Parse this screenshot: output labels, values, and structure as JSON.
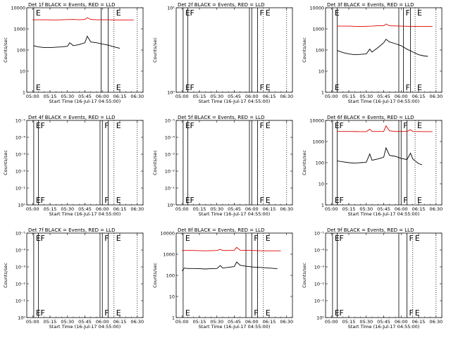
{
  "figure": {
    "colors": {
      "events": "#000000",
      "lld": "#e00000",
      "background": "#ffffff"
    }
  },
  "chart_data": [
    {
      "type": "line",
      "title": "Det 1f  BLACK = Events, RED = LLD",
      "xlabel": "Start Time (16-Jul-17 04:55:00)",
      "ylabel": "Counts/sec",
      "x_ticks": [
        "05:00",
        "05:15",
        "05:30",
        "05:45",
        "06:00",
        "06:15",
        "06:30"
      ],
      "y_scale": "log",
      "y_ticks": [
        "1",
        "10",
        "100",
        "1000",
        "10000"
      ],
      "xlim": [
        "04:55",
        "06:35"
      ],
      "ylim": [
        1,
        10000
      ],
      "markers": [
        {
          "time": "05:01",
          "style": "solid",
          "label": "E"
        },
        {
          "time": "05:59",
          "style": "solid",
          "label": ""
        },
        {
          "time": "06:05",
          "style": "solid",
          "label": ""
        },
        {
          "time": "06:10",
          "style": "dotted",
          "label": "E"
        },
        {
          "time": "06:30",
          "style": "dotted",
          "label": ""
        }
      ],
      "series": [
        {
          "color": "#e00000",
          "x": [
            "05:00",
            "05:10",
            "05:20",
            "05:30",
            "05:35",
            "05:40",
            "05:45",
            "05:47",
            "05:50",
            "05:55",
            "06:00",
            "06:05",
            "06:10",
            "06:15",
            "06:20",
            "06:27"
          ],
          "y": [
            2700,
            2700,
            2650,
            2750,
            2800,
            2700,
            2800,
            3400,
            2800,
            2700,
            2700,
            2700,
            2650,
            2650,
            2650,
            2650
          ]
        },
        {
          "color": "#000000",
          "x": [
            "05:01",
            "05:05",
            "05:10",
            "05:15",
            "05:20",
            "05:25",
            "05:30",
            "05:32",
            "05:35",
            "05:40",
            "05:45",
            "05:47",
            "05:50",
            "05:55",
            "06:00",
            "06:05",
            "06:10",
            "06:15"
          ],
          "y": [
            160,
            140,
            130,
            130,
            135,
            140,
            150,
            220,
            160,
            180,
            220,
            450,
            240,
            220,
            190,
            170,
            140,
            120
          ]
        }
      ]
    },
    {
      "type": "line",
      "title": "Det 2f  BLACK = Events, RED = LLD",
      "xlabel": "Start Time (16-Jul-17 04:55:00)",
      "ylabel": "Counts/sec",
      "x_ticks": [
        "05:00",
        "05:15",
        "05:30",
        "05:45",
        "06:00",
        "06:15",
        "06:30"
      ],
      "y_scale": "log",
      "y_ticks": [
        "10⁰",
        "10¹"
      ],
      "xlim": [
        "04:55",
        "06:35"
      ],
      "ylim": [
        1,
        10
      ],
      "markers": [
        {
          "time": "05:01",
          "style": "solid",
          "label": "E"
        },
        {
          "time": "05:05",
          "style": "solid",
          "label": "F"
        },
        {
          "time": "05:58",
          "style": "solid",
          "label": ""
        },
        {
          "time": "06:00",
          "style": "solid",
          "label": ""
        },
        {
          "time": "06:05",
          "style": "solid",
          "label": "F"
        },
        {
          "time": "06:10",
          "style": "dotted",
          "label": "E"
        },
        {
          "time": "06:30",
          "style": "dotted",
          "label": ""
        }
      ],
      "series": []
    },
    {
      "type": "line",
      "title": "Det 3f  BLACK = Events, RED = LLD",
      "xlabel": "Start Time (16-Jul-17 04:55:00)",
      "ylabel": "Counts/sec",
      "x_ticks": [
        "05:00",
        "05:15",
        "05:30",
        "05:45",
        "06:00",
        "06:15",
        "06:30"
      ],
      "y_scale": "log",
      "y_ticks": [
        "1",
        "10",
        "100",
        "1000",
        "10000"
      ],
      "xlim": [
        "04:55",
        "06:35"
      ],
      "ylim": [
        1,
        10000
      ],
      "markers": [
        {
          "time": "05:01",
          "style": "solid",
          "label": "E"
        },
        {
          "time": "05:05",
          "style": "solid",
          "label": ""
        },
        {
          "time": "05:58",
          "style": "solid",
          "label": ""
        },
        {
          "time": "06:02",
          "style": "solid",
          "label": "F"
        },
        {
          "time": "06:08",
          "style": "solid",
          "label": ""
        },
        {
          "time": "06:12",
          "style": "dotted",
          "label": "E"
        },
        {
          "time": "06:30",
          "style": "dotted",
          "label": ""
        }
      ],
      "series": [
        {
          "color": "#e00000",
          "x": [
            "05:05",
            "05:15",
            "05:25",
            "05:35",
            "05:40",
            "05:45",
            "05:47",
            "05:50",
            "06:00",
            "06:10",
            "06:20",
            "06:27"
          ],
          "y": [
            1350,
            1350,
            1300,
            1350,
            1400,
            1400,
            1700,
            1400,
            1350,
            1300,
            1300,
            1300
          ]
        },
        {
          "color": "#000000",
          "x": [
            "05:05",
            "05:10",
            "05:15",
            "05:20",
            "05:25",
            "05:30",
            "05:33",
            "05:35",
            "05:40",
            "05:45",
            "05:47",
            "05:50",
            "05:55",
            "06:00",
            "06:05",
            "06:10",
            "06:15",
            "06:20",
            "06:23"
          ],
          "y": [
            95,
            75,
            65,
            60,
            62,
            65,
            110,
            80,
            130,
            220,
            320,
            240,
            200,
            160,
            110,
            80,
            60,
            52,
            50
          ]
        }
      ]
    },
    {
      "type": "line",
      "title": "Det 4f  BLACK = Events, RED = LLD",
      "xlabel": "Start Time (16-Jul-17 04:55:00)",
      "ylabel": "Counts/sec",
      "x_ticks": [
        "05:00",
        "05:15",
        "05:30",
        "05:45",
        "06:00",
        "06:15",
        "06:30"
      ],
      "y_scale": "log",
      "y_ticks": [
        "10⁰",
        "10⁻¹",
        "10⁻²",
        "10⁻³",
        "10⁻⁴",
        "10⁻⁵"
      ],
      "xlim": [
        "04:55",
        "06:35"
      ],
      "ylim": [
        1,
        10
      ],
      "markers": [
        {
          "time": "05:01",
          "style": "solid",
          "label": "E"
        },
        {
          "time": "05:05",
          "style": "solid",
          "label": "F"
        },
        {
          "time": "05:58",
          "style": "solid",
          "label": ""
        },
        {
          "time": "06:00",
          "style": "solid",
          "label": "F"
        },
        {
          "time": "06:05",
          "style": "solid",
          "label": ""
        },
        {
          "time": "06:10",
          "style": "dotted",
          "label": "E"
        },
        {
          "time": "06:30",
          "style": "dotted",
          "label": ""
        }
      ],
      "series": []
    },
    {
      "type": "line",
      "title": "Det 5f  BLACK = Events, RED = LLD",
      "xlabel": "Start Time (16-Jul-17 04:55:00)",
      "ylabel": "Counts/sec",
      "x_ticks": [
        "05:00",
        "05:15",
        "05:30",
        "05:45",
        "06:00",
        "06:15",
        "06:30"
      ],
      "y_scale": "log",
      "y_ticks": [
        "10⁰",
        "10⁻¹",
        "10⁻²",
        "10⁻³",
        "10⁻⁴",
        "10⁻⁵"
      ],
      "xlim": [
        "04:55",
        "06:35"
      ],
      "ylim": [
        1,
        10
      ],
      "markers": [
        {
          "time": "05:01",
          "style": "solid",
          "label": "E"
        },
        {
          "time": "05:05",
          "style": "solid",
          "label": "F"
        },
        {
          "time": "05:58",
          "style": "solid",
          "label": ""
        },
        {
          "time": "06:00",
          "style": "solid",
          "label": ""
        },
        {
          "time": "06:05",
          "style": "solid",
          "label": "F"
        },
        {
          "time": "06:10",
          "style": "dotted",
          "label": "E"
        },
        {
          "time": "06:30",
          "style": "dotted",
          "label": ""
        }
      ],
      "series": []
    },
    {
      "type": "line",
      "title": "Det 6f  BLACK = Events, RED = LLD",
      "xlabel": "Start Time (16-Jul-17 04:55:00)",
      "ylabel": "Counts/sec",
      "x_ticks": [
        "05:00",
        "05:15",
        "05:30",
        "05:45",
        "06:00",
        "06:15",
        "06:30"
      ],
      "y_scale": "log",
      "y_ticks": [
        "1",
        "10",
        "100",
        "1000",
        "10000"
      ],
      "xlim": [
        "04:55",
        "06:35"
      ],
      "ylim": [
        1,
        10000
      ],
      "markers": [
        {
          "time": "05:01",
          "style": "solid",
          "label": "E"
        },
        {
          "time": "05:05",
          "style": "solid",
          "label": "F"
        },
        {
          "time": "05:58",
          "style": "solid",
          "label": ""
        },
        {
          "time": "06:00",
          "style": "solid",
          "label": "F"
        },
        {
          "time": "06:05",
          "style": "solid",
          "label": ""
        },
        {
          "time": "06:12",
          "style": "dotted",
          "label": "E"
        },
        {
          "time": "06:30",
          "style": "dotted",
          "label": ""
        }
      ],
      "series": [
        {
          "color": "#e00000",
          "x": [
            "05:05",
            "05:15",
            "05:25",
            "05:30",
            "05:33",
            "05:35",
            "05:40",
            "05:45",
            "05:47",
            "05:50",
            "05:55",
            "06:00",
            "06:05",
            "06:08",
            "06:10",
            "06:20",
            "06:27"
          ],
          "y": [
            3000,
            3000,
            2950,
            2950,
            3800,
            3000,
            3000,
            3000,
            5500,
            3200,
            3000,
            3000,
            3000,
            3600,
            3000,
            2950,
            2950
          ]
        },
        {
          "color": "#000000",
          "x": [
            "05:05",
            "05:10",
            "05:15",
            "05:20",
            "05:25",
            "05:30",
            "05:33",
            "05:35",
            "05:40",
            "05:45",
            "05:47",
            "05:50",
            "05:55",
            "06:00",
            "06:05",
            "06:08",
            "06:10",
            "06:15",
            "06:18"
          ],
          "y": [
            120,
            110,
            100,
            95,
            100,
            105,
            260,
            130,
            150,
            180,
            500,
            220,
            200,
            160,
            140,
            280,
            150,
            90,
            80
          ]
        }
      ]
    },
    {
      "type": "line",
      "title": "Det 7f  BLACK = Events, RED = LLD",
      "xlabel": "Start Time (16-Jul-17 04:55:00)",
      "ylabel": "Counts/sec",
      "x_ticks": [
        "05:00",
        "05:15",
        "05:30",
        "05:45",
        "06:00",
        "06:15",
        "06:30"
      ],
      "y_scale": "log",
      "y_ticks": [
        "10⁰",
        "10⁻¹",
        "10⁻²",
        "10⁻³",
        "10⁻⁴",
        "10⁻⁵"
      ],
      "xlim": [
        "04:55",
        "06:35"
      ],
      "ylim": [
        1,
        10
      ],
      "markers": [
        {
          "time": "05:01",
          "style": "solid",
          "label": "E"
        },
        {
          "time": "05:05",
          "style": "solid",
          "label": "F"
        },
        {
          "time": "05:58",
          "style": "solid",
          "label": ""
        },
        {
          "time": "06:00",
          "style": "solid",
          "label": "F"
        },
        {
          "time": "06:05",
          "style": "solid",
          "label": ""
        },
        {
          "time": "06:10",
          "style": "dotted",
          "label": "E"
        },
        {
          "time": "06:30",
          "style": "dotted",
          "label": ""
        }
      ],
      "series": []
    },
    {
      "type": "line",
      "title": "Det 8f  BLACK = Events, RED = LLD",
      "xlabel": "Start Time (16-Jul-17 04:55:00)",
      "ylabel": "Counts/sec",
      "x_ticks": [
        "05:00",
        "05:15",
        "05:30",
        "05:45",
        "06:00",
        "06:15",
        "06:30"
      ],
      "y_scale": "log",
      "y_ticks": [
        "1",
        "10",
        "100",
        "1000",
        "10000"
      ],
      "xlim": [
        "04:55",
        "06:35"
      ],
      "ylim": [
        1,
        10000
      ],
      "markers": [
        {
          "time": "05:01",
          "style": "solid",
          "label": "E"
        },
        {
          "time": "05:55",
          "style": "solid",
          "label": ""
        },
        {
          "time": "06:00",
          "style": "solid",
          "label": "F"
        },
        {
          "time": "06:05",
          "style": "solid",
          "label": ""
        },
        {
          "time": "06:10",
          "style": "dotted",
          "label": "E"
        }
      ],
      "series": [
        {
          "color": "#e00000",
          "x": [
            "05:00",
            "05:10",
            "05:20",
            "05:30",
            "05:33",
            "05:35",
            "05:40",
            "05:45",
            "05:47",
            "05:50",
            "06:00",
            "06:10",
            "06:20",
            "06:25"
          ],
          "y": [
            1500,
            1500,
            1450,
            1500,
            1700,
            1500,
            1500,
            1550,
            2100,
            1550,
            1500,
            1450,
            1450,
            1450
          ]
        },
        {
          "color": "#000000",
          "x": [
            "05:00",
            "05:02",
            "05:05",
            "05:10",
            "05:15",
            "05:20",
            "05:25",
            "05:30",
            "05:33",
            "05:35",
            "05:40",
            "05:45",
            "05:47",
            "05:50",
            "05:55",
            "06:00",
            "06:05",
            "06:10",
            "06:15",
            "06:20",
            "06:22"
          ],
          "y": [
            160,
            220,
            210,
            210,
            205,
            200,
            205,
            210,
            290,
            220,
            240,
            260,
            430,
            300,
            270,
            250,
            240,
            230,
            220,
            210,
            205
          ]
        }
      ]
    },
    {
      "type": "line",
      "title": "Det 9f  BLACK = Events, RED = LLD",
      "xlabel": "Start Time (16-Jul-17 04:55:00)",
      "ylabel": "Counts/sec",
      "x_ticks": [
        "05:00",
        "05:15",
        "05:30",
        "05:45",
        "06:00",
        "06:15",
        "06:30"
      ],
      "y_scale": "log",
      "y_ticks": [
        "10⁰",
        "10⁻¹",
        "10⁻²",
        "10⁻³",
        "10⁻⁴",
        "10⁻⁵"
      ],
      "xlim": [
        "04:55",
        "06:35"
      ],
      "ylim": [
        1,
        10
      ],
      "markers": [
        {
          "time": "05:01",
          "style": "solid",
          "label": "E"
        },
        {
          "time": "05:05",
          "style": "solid",
          "label": "F"
        },
        {
          "time": "05:58",
          "style": "solid",
          "label": ""
        },
        {
          "time": "06:05",
          "style": "solid",
          "label": "F"
        },
        {
          "time": "06:10",
          "style": "dotted",
          "label": "E"
        },
        {
          "time": "06:30",
          "style": "dotted",
          "label": ""
        }
      ],
      "series": []
    }
  ]
}
